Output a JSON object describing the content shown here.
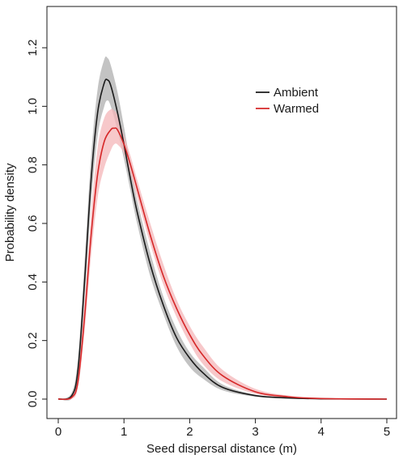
{
  "chart_data": {
    "type": "line",
    "xlabel": "Seed dispersal distance (m)",
    "ylabel": "Probability density",
    "xlim": [
      0,
      5
    ],
    "ylim": [
      0,
      1.2
    ],
    "x_ticks": [
      0,
      1,
      2,
      3,
      4,
      5
    ],
    "y_ticks": [
      0.0,
      0.2,
      0.4,
      0.6,
      0.8,
      1.0,
      1.2
    ],
    "x_tick_labels": [
      "0",
      "1",
      "2",
      "3",
      "4",
      "5"
    ],
    "y_tick_labels": [
      "0.0",
      "0.2",
      "0.4",
      "0.6",
      "0.8",
      "1.0",
      "1.2"
    ],
    "legend_position": "top-right",
    "grid": false,
    "series": [
      {
        "name": "Ambient",
        "color": "#1a1a1a",
        "band_color": "#bdbdbd",
        "x": [
          0.0,
          0.2,
          0.3,
          0.4,
          0.5,
          0.6,
          0.7,
          0.75,
          0.8,
          0.9,
          1.0,
          1.1,
          1.2,
          1.4,
          1.6,
          1.8,
          2.0,
          2.2,
          2.5,
          3.0,
          3.5,
          4.0,
          5.0
        ],
        "y": [
          0.0,
          0.01,
          0.1,
          0.4,
          0.75,
          0.98,
          1.08,
          1.09,
          1.07,
          0.98,
          0.87,
          0.75,
          0.64,
          0.46,
          0.32,
          0.21,
          0.14,
          0.09,
          0.04,
          0.012,
          0.004,
          0.001,
          0.0
        ],
        "lower": [
          0.0,
          0.0,
          0.07,
          0.34,
          0.67,
          0.9,
          1.0,
          1.02,
          1.0,
          0.92,
          0.82,
          0.71,
          0.6,
          0.42,
          0.29,
          0.18,
          0.11,
          0.07,
          0.03,
          0.008,
          0.002,
          0.0,
          0.0
        ],
        "upper": [
          0.0,
          0.02,
          0.14,
          0.47,
          0.83,
          1.06,
          1.16,
          1.165,
          1.14,
          1.05,
          0.93,
          0.8,
          0.68,
          0.5,
          0.35,
          0.24,
          0.16,
          0.11,
          0.05,
          0.015,
          0.006,
          0.002,
          0.0
        ]
      },
      {
        "name": "Warmed",
        "color": "#d62728",
        "band_color": "#f4b6b8",
        "x": [
          0.0,
          0.2,
          0.3,
          0.4,
          0.5,
          0.6,
          0.7,
          0.8,
          0.85,
          0.9,
          1.0,
          1.1,
          1.2,
          1.4,
          1.6,
          1.8,
          2.0,
          2.2,
          2.5,
          3.0,
          3.5,
          4.0,
          5.0
        ],
        "y": [
          0.0,
          0.005,
          0.06,
          0.28,
          0.56,
          0.77,
          0.88,
          0.92,
          0.925,
          0.92,
          0.87,
          0.8,
          0.72,
          0.56,
          0.42,
          0.31,
          0.22,
          0.15,
          0.08,
          0.025,
          0.008,
          0.002,
          0.0
        ],
        "lower": [
          0.0,
          0.0,
          0.04,
          0.23,
          0.49,
          0.69,
          0.79,
          0.85,
          0.87,
          0.87,
          0.84,
          0.77,
          0.69,
          0.53,
          0.39,
          0.28,
          0.19,
          0.12,
          0.06,
          0.018,
          0.005,
          0.001,
          0.0
        ],
        "upper": [
          0.0,
          0.01,
          0.09,
          0.33,
          0.63,
          0.86,
          0.96,
          0.99,
          0.985,
          0.97,
          0.9,
          0.83,
          0.75,
          0.6,
          0.46,
          0.34,
          0.25,
          0.18,
          0.1,
          0.035,
          0.012,
          0.004,
          0.0
        ]
      }
    ]
  }
}
